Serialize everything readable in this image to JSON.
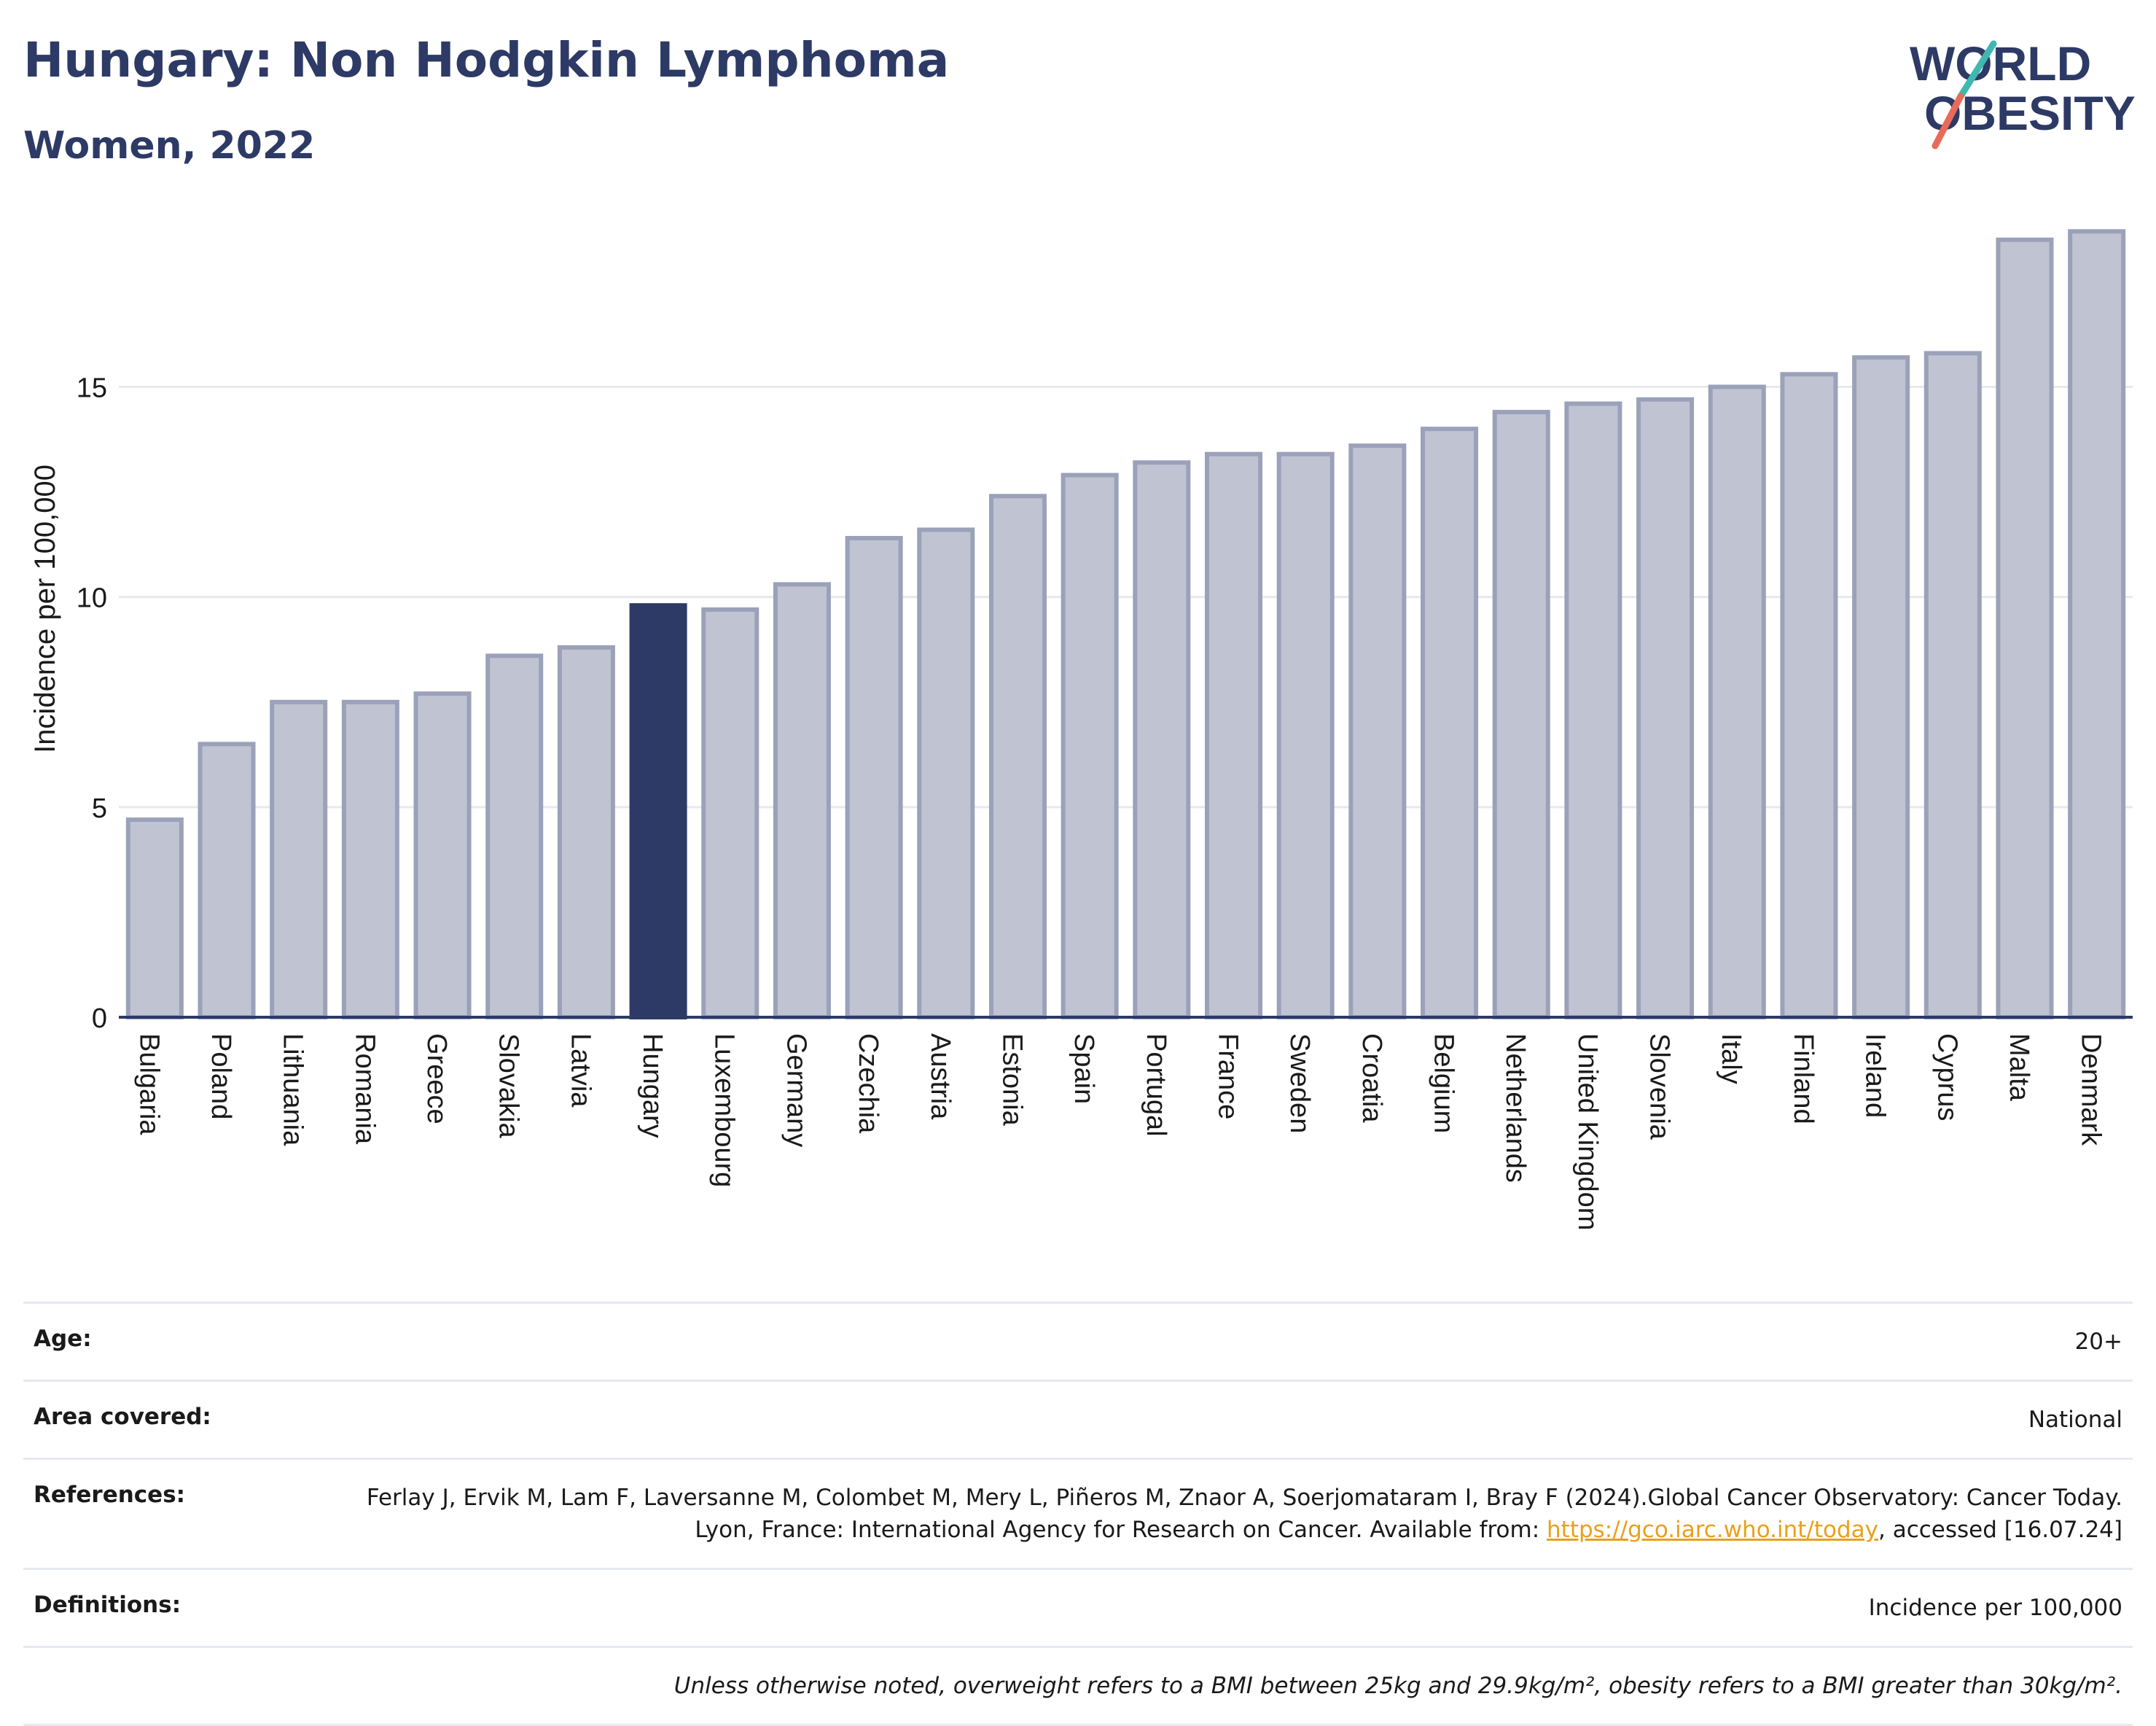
{
  "header": {
    "title": "Hungary: Non Hodgkin Lymphoma",
    "subtitle": "Women, 2022"
  },
  "logo": {
    "line1": "WORLD",
    "line2": "OBESITY"
  },
  "chart_data": {
    "type": "bar",
    "ylabel": "Incidence per 100,000",
    "xlabel": "",
    "ylim": [
      0,
      19
    ],
    "yticks": [
      0,
      5,
      10,
      15
    ],
    "grid": true,
    "highlight": "Hungary",
    "categories": [
      "Bulgaria",
      "Poland",
      "Lithuania",
      "Romania",
      "Greece",
      "Slovakia",
      "Latvia",
      "Hungary",
      "Luxembourg",
      "Germany",
      "Czechia",
      "Austria",
      "Estonia",
      "Spain",
      "Portugal",
      "France",
      "Sweden",
      "Croatia",
      "Belgium",
      "Netherlands",
      "United Kingdom",
      "Slovenia",
      "Italy",
      "Finland",
      "Ireland",
      "Cyprus",
      "Malta",
      "Denmark"
    ],
    "values": [
      4.7,
      6.5,
      7.5,
      7.5,
      7.7,
      8.6,
      8.8,
      9.8,
      9.7,
      10.3,
      11.4,
      11.6,
      12.4,
      12.9,
      13.2,
      13.4,
      13.4,
      13.6,
      14.0,
      14.4,
      14.6,
      14.7,
      15.0,
      15.3,
      15.7,
      15.8,
      18.5,
      18.7
    ],
    "colors": {
      "bar": "#c0c4d2",
      "bar_border": "#9aa1b9",
      "highlight": "#2d3a66",
      "grid": "#e8e9ee",
      "axis": "#2d3a66"
    }
  },
  "meta": {
    "age_label": "Age:",
    "age_value": "20+",
    "area_label": "Area covered:",
    "area_value": "National",
    "references_label": "References:",
    "references_text": "Ferlay J, Ervik M, Lam F, Laversanne M, Colombet M, Mery L, Piñeros M, Znaor A, Soerjomataram I, Bray F (2024).Global Cancer Observatory: Cancer Today. Lyon, France: International Agency for Research on Cancer. Available from: ",
    "references_link": "https://gco.iarc.who.int/today",
    "references_tail": ", accessed [16.07.24]",
    "definitions_label": "Definitions:",
    "definitions_value": "Incidence per 100,000",
    "note": "Unless otherwise noted, overweight refers to a BMI between 25kg and 29.9kg/m², obesity refers to a BMI greater than 30kg/m²."
  }
}
